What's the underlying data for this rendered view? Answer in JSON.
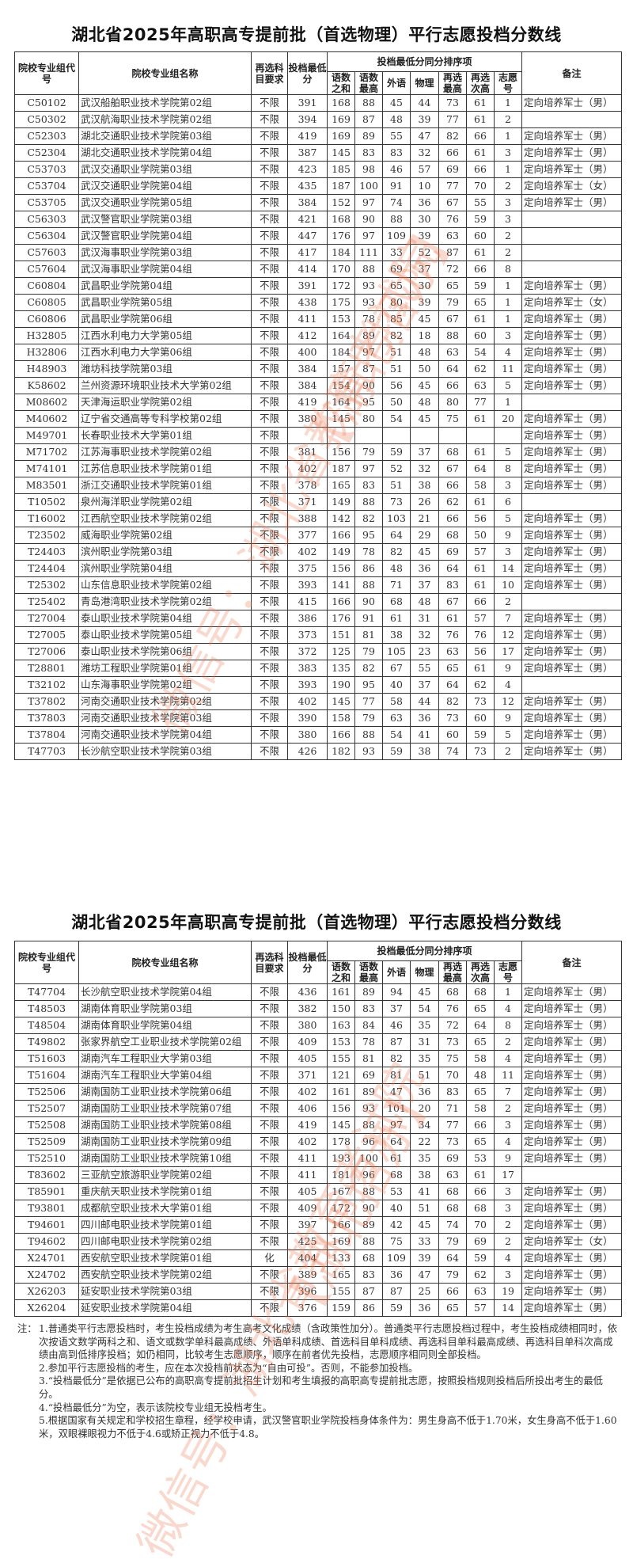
{
  "title": "湖北省2025年高职高专提前批（首选物理）平行志愿投档分数线",
  "header": {
    "code": "院校专业组代号",
    "name": "院校专业组名称",
    "req": "再选科目要求",
    "min": "投档最低分",
    "tiebreak_group": "投档最低分同分排序项",
    "sub": [
      "语数之和",
      "语数最高",
      "外语",
      "物理",
      "再选最高",
      "再选次高",
      "志愿号"
    ],
    "note": "备注"
  },
  "tables": [
    {
      "rows": [
        [
          "C50102",
          "武汉船舶职业技术学院第02组",
          "不限",
          "391",
          "168",
          "88",
          "45",
          "44",
          "73",
          "61",
          "1",
          "定向培养军士（男）"
        ],
        [
          "C50302",
          "武汉航海职业技术学院第02组",
          "不限",
          "394",
          "169",
          "87",
          "48",
          "39",
          "77",
          "61",
          "2",
          ""
        ],
        [
          "C52303",
          "湖北交通职业技术学院第03组",
          "不限",
          "419",
          "169",
          "89",
          "55",
          "47",
          "82",
          "66",
          "1",
          "定向培养军士（男）"
        ],
        [
          "C52304",
          "湖北交通职业技术学院第04组",
          "不限",
          "387",
          "145",
          "83",
          "83",
          "32",
          "66",
          "61",
          "3",
          "定向培养军士（男）"
        ],
        [
          "C53703",
          "武汉交通职业学院第03组",
          "不限",
          "423",
          "185",
          "98",
          "46",
          "57",
          "69",
          "66",
          "1",
          "定向培养军士（男）"
        ],
        [
          "C53704",
          "武汉交通职业学院第04组",
          "不限",
          "435",
          "187",
          "100",
          "91",
          "10",
          "77",
          "70",
          "2",
          "定向培养军士（女）"
        ],
        [
          "C53705",
          "武汉交通职业学院第05组",
          "不限",
          "384",
          "152",
          "97",
          "74",
          "36",
          "67",
          "55",
          "3",
          "定向培养军士（男）"
        ],
        [
          "C56303",
          "武汉警官职业学院第03组",
          "不限",
          "421",
          "168",
          "90",
          "88",
          "30",
          "76",
          "59",
          "3",
          ""
        ],
        [
          "C56304",
          "武汉警官职业学院第04组",
          "不限",
          "447",
          "176",
          "97",
          "109",
          "39",
          "63",
          "60",
          "2",
          ""
        ],
        [
          "C57603",
          "武汉海事职业学院第03组",
          "不限",
          "417",
          "184",
          "111",
          "33",
          "52",
          "87",
          "61",
          "2",
          ""
        ],
        [
          "C57604",
          "武汉海事职业学院第04组",
          "不限",
          "414",
          "170",
          "88",
          "69",
          "37",
          "72",
          "66",
          "8",
          ""
        ],
        [
          "C60804",
          "武昌职业学院第04组",
          "不限",
          "391",
          "172",
          "93",
          "65",
          "30",
          "65",
          "59",
          "1",
          "定向培养军士（男）"
        ],
        [
          "C60805",
          "武昌职业学院第05组",
          "不限",
          "438",
          "175",
          "93",
          "80",
          "39",
          "79",
          "65",
          "1",
          "定向培养军士（女）"
        ],
        [
          "C60806",
          "武昌职业学院第06组",
          "不限",
          "411",
          "153",
          "78",
          "85",
          "45",
          "67",
          "61",
          "1",
          "定向培养军士（男）"
        ],
        [
          "H32805",
          "江西水利电力大学第05组",
          "不限",
          "412",
          "164",
          "89",
          "82",
          "18",
          "88",
          "60",
          "3",
          "定向培养军士（男）"
        ],
        [
          "H32806",
          "江西水利电力大学第06组",
          "不限",
          "400",
          "184",
          "97",
          "51",
          "48",
          "63",
          "54",
          "4",
          "定向培养军士（男）"
        ],
        [
          "H48903",
          "潍坊科技学院第03组",
          "不限",
          "384",
          "157",
          "87",
          "51",
          "50",
          "64",
          "62",
          "11",
          "定向培养军士（男）"
        ],
        [
          "K58602",
          "兰州资源环境职业技术大学第02组",
          "不限",
          "384",
          "154",
          "90",
          "56",
          "45",
          "66",
          "63",
          "5",
          "定向培养军士（男）"
        ],
        [
          "M08602",
          "天津海运职业学院第02组",
          "不限",
          "419",
          "164",
          "95",
          "50",
          "48",
          "80",
          "77",
          "1",
          ""
        ],
        [
          "M40602",
          "辽宁省交通高等专科学校第02组",
          "不限",
          "380",
          "145",
          "80",
          "54",
          "45",
          "75",
          "61",
          "20",
          "定向培养军士（男）"
        ],
        [
          "M49701",
          "长春职业技术大学第01组",
          "不限",
          "",
          "",
          "",
          "",
          "",
          "",
          "",
          "",
          "定向培养军士（男）"
        ],
        [
          "M71702",
          "江苏海事职业技术学院第02组",
          "不限",
          "381",
          "156",
          "79",
          "59",
          "37",
          "68",
          "61",
          "5",
          "定向培养军士（男）"
        ],
        [
          "M74101",
          "江苏信息职业技术学院第01组",
          "不限",
          "402",
          "187",
          "97",
          "52",
          "32",
          "67",
          "64",
          "8",
          "定向培养军士（男）"
        ],
        [
          "M83501",
          "浙江交通职业技术学院第01组",
          "不限",
          "378",
          "165",
          "83",
          "51",
          "38",
          "66",
          "58",
          "3",
          "定向培养军士（男）"
        ],
        [
          "T10502",
          "泉州海洋职业学院第02组",
          "不限",
          "371",
          "149",
          "88",
          "73",
          "26",
          "62",
          "61",
          "6",
          ""
        ],
        [
          "T16002",
          "江西航空职业技术学院第02组",
          "不限",
          "388",
          "142",
          "82",
          "103",
          "21",
          "66",
          "56",
          "5",
          "定向培养军士（男）"
        ],
        [
          "T23502",
          "威海职业学院第02组",
          "不限",
          "377",
          "166",
          "95",
          "64",
          "29",
          "68",
          "50",
          "9",
          "定向培养军士（男）"
        ],
        [
          "T24403",
          "滨州职业学院第03组",
          "不限",
          "402",
          "149",
          "78",
          "82",
          "45",
          "69",
          "57",
          "3",
          "定向培养军士（男）"
        ],
        [
          "T24404",
          "滨州职业学院第04组",
          "不限",
          "375",
          "156",
          "86",
          "48",
          "36",
          "64",
          "61",
          "14",
          "定向培养军士（男）"
        ],
        [
          "T25302",
          "山东信息职业技术学院第02组",
          "不限",
          "393",
          "141",
          "88",
          "71",
          "37",
          "83",
          "61",
          "10",
          "定向培养军士（男）"
        ],
        [
          "T25402",
          "青岛港湾职业技术学院第02组",
          "不限",
          "415",
          "166",
          "90",
          "68",
          "48",
          "67",
          "66",
          "2",
          ""
        ],
        [
          "T27004",
          "泰山职业技术学院第04组",
          "不限",
          "386",
          "176",
          "91",
          "61",
          "31",
          "61",
          "57",
          "7",
          "定向培养军士（男）"
        ],
        [
          "T27005",
          "泰山职业技术学院第05组",
          "不限",
          "373",
          "151",
          "81",
          "38",
          "32",
          "76",
          "76",
          "12",
          "定向培养军士（男）"
        ],
        [
          "T27006",
          "泰山职业技术学院第06组",
          "不限",
          "372",
          "125",
          "79",
          "105",
          "23",
          "63",
          "56",
          "17",
          "定向培养军士（男）"
        ],
        [
          "T28801",
          "潍坊工程职业学院第01组",
          "不限",
          "383",
          "135",
          "82",
          "67",
          "55",
          "65",
          "61",
          "9",
          "定向培养军士（男）"
        ],
        [
          "T32102",
          "山东海事职业学院第02组",
          "不限",
          "393",
          "190",
          "95",
          "40",
          "37",
          "64",
          "62",
          "4",
          ""
        ],
        [
          "T37802",
          "河南交通职业技术学院第02组",
          "不限",
          "402",
          "145",
          "77",
          "58",
          "44",
          "82",
          "73",
          "12",
          "定向培养军士（男）"
        ],
        [
          "T37803",
          "河南交通职业技术学院第03组",
          "不限",
          "390",
          "158",
          "79",
          "63",
          "36",
          "73",
          "60",
          "9",
          "定向培养军士（男）"
        ],
        [
          "T37804",
          "河南交通职业技术学院第04组",
          "不限",
          "380",
          "166",
          "88",
          "54",
          "41",
          "60",
          "59",
          "5",
          "定向培养军士（男）"
        ],
        [
          "T47703",
          "长沙航空职业技术学院第03组",
          "不限",
          "426",
          "182",
          "93",
          "59",
          "38",
          "74",
          "73",
          "2",
          "定向培养军士（男）"
        ]
      ]
    },
    {
      "rows": [
        [
          "T47704",
          "长沙航空职业技术学院第04组",
          "不限",
          "436",
          "161",
          "89",
          "94",
          "45",
          "68",
          "68",
          "1",
          "定向培养军士（男）"
        ],
        [
          "T48503",
          "湖南体育职业学院第03组",
          "不限",
          "382",
          "150",
          "83",
          "37",
          "54",
          "76",
          "65",
          "4",
          "定向培养军士（男）"
        ],
        [
          "T48504",
          "湖南体育职业学院第04组",
          "不限",
          "380",
          "163",
          "84",
          "46",
          "35",
          "72",
          "64",
          "8",
          "定向培养军士（男）"
        ],
        [
          "T49802",
          "张家界航空工业职业技术学院第02组",
          "不限",
          "409",
          "153",
          "78",
          "87",
          "31",
          "73",
          "65",
          "2",
          "定向培养军士（男）"
        ],
        [
          "T51603",
          "湖南汽车工程职业大学第03组",
          "不限",
          "405",
          "155",
          "81",
          "82",
          "35",
          "75",
          "58",
          "4",
          "定向培养军士（男）"
        ],
        [
          "T51604",
          "湖南汽车工程职业大学第04组",
          "不限",
          "371",
          "121",
          "69",
          "81",
          "51",
          "70",
          "48",
          "11",
          "定向培养军士（男）"
        ],
        [
          "T52506",
          "湖南国防工业职业技术学院第06组",
          "不限",
          "402",
          "161",
          "89",
          "47",
          "36",
          "83",
          "65",
          "7",
          "定向培养军士（男）"
        ],
        [
          "T52507",
          "湖南国防工业职业技术学院第07组",
          "不限",
          "406",
          "156",
          "93",
          "101",
          "20",
          "71",
          "58",
          "2",
          "定向培养军士（男）"
        ],
        [
          "T52508",
          "湖南国防工业职业技术学院第08组",
          "不限",
          "419",
          "145",
          "88",
          "97",
          "34",
          "77",
          "66",
          "3",
          "定向培养军士（男）"
        ],
        [
          "T52509",
          "湖南国防工业职业技术学院第09组",
          "不限",
          "402",
          "178",
          "96",
          "64",
          "22",
          "73",
          "65",
          "4",
          "定向培养军士（男）"
        ],
        [
          "T52510",
          "湖南国防工业职业技术学院第10组",
          "不限",
          "411",
          "193",
          "100",
          "61",
          "35",
          "69",
          "53",
          "9",
          "定向培养军士（男）"
        ],
        [
          "T83602",
          "三亚航空旅游职业学院第02组",
          "不限",
          "411",
          "181",
          "96",
          "68",
          "38",
          "63",
          "61",
          "17",
          ""
        ],
        [
          "T85901",
          "重庆航天职业技术学院第01组",
          "不限",
          "405",
          "167",
          "88",
          "53",
          "41",
          "68",
          "66",
          "3",
          "定向培养军士（男）"
        ],
        [
          "T93801",
          "成都航空职业技术大学第01组",
          "不限",
          "409",
          "172",
          "90",
          "40",
          "51",
          "68",
          "68",
          "3",
          "定向培养军士（男）"
        ],
        [
          "T94601",
          "四川邮电职业技术学院第01组",
          "不限",
          "397",
          "166",
          "89",
          "42",
          "45",
          "74",
          "70",
          "2",
          "定向培养军士（男）"
        ],
        [
          "T94602",
          "四川邮电职业技术学院第02组",
          "不限",
          "425",
          "169",
          "88",
          "75",
          "33",
          "79",
          "69",
          "2",
          "定向培养军士（女）"
        ],
        [
          "X24701",
          "西安航空职业技术学院第01组",
          "化",
          "404",
          "133",
          "68",
          "109",
          "39",
          "64",
          "59",
          "4",
          "定向培养军士（男）"
        ],
        [
          "X24702",
          "西安航空职业技术学院第02组",
          "不限",
          "389",
          "165",
          "83",
          "36",
          "47",
          "79",
          "62",
          "3",
          "定向培养军士（男）"
        ],
        [
          "X26203",
          "延安职业技术学院第03组",
          "不限",
          "396",
          "155",
          "87",
          "87",
          "25",
          "66",
          "63",
          "19",
          "定向培养军士（男）"
        ],
        [
          "X26204",
          "延安职业技术学院第04组",
          "不限",
          "376",
          "159",
          "86",
          "59",
          "36",
          "65",
          "57",
          "14",
          "定向培养军士（男）"
        ]
      ]
    }
  ],
  "notes": {
    "label": "注：",
    "items": [
      "1.普通类平行志愿投档时，考生投档成绩为考生高考文化成绩（含政策性加分）。普通类平行志愿投档过程中，考生投档成绩相同时，依次按语文数学两科之和、语文或数学单科最高成绩、外语单科成绩、首选科目单科成绩、再选科目单科最高成绩、再选科目单科次高成绩由高到低排序投档；如仍相同，比较考生志愿顺序，顺序在前者优先投档，志愿顺序相同则全部投档。",
      "2.参加平行志愿投档的考生，应在本次投档前状态为“自由可投”。否则，不能参加投档。",
      "3.“投档最低分”是依据已公布的高职高专提前批招生计划和考生填报的高职高专提前批志愿，按照投档规则投档后所投出考生的最低分。",
      "4.“投档最低分”为空，表示该院校专业组无投档考生。",
      "5.根据国家有关规定和学校招生章程，经学校申请，武汉警官职业学院投档身体条件为：男生身高不低于1.70米，女生身高不低于1.60米，双眼裸眼视力不低于4.6或矫正视力不低于4.8。"
    ]
  },
  "watermark": {
    "lines": [
      "微信号：湖北省教育考试院",
      "【湖北招办】"
    ],
    "color": "#e87850"
  }
}
